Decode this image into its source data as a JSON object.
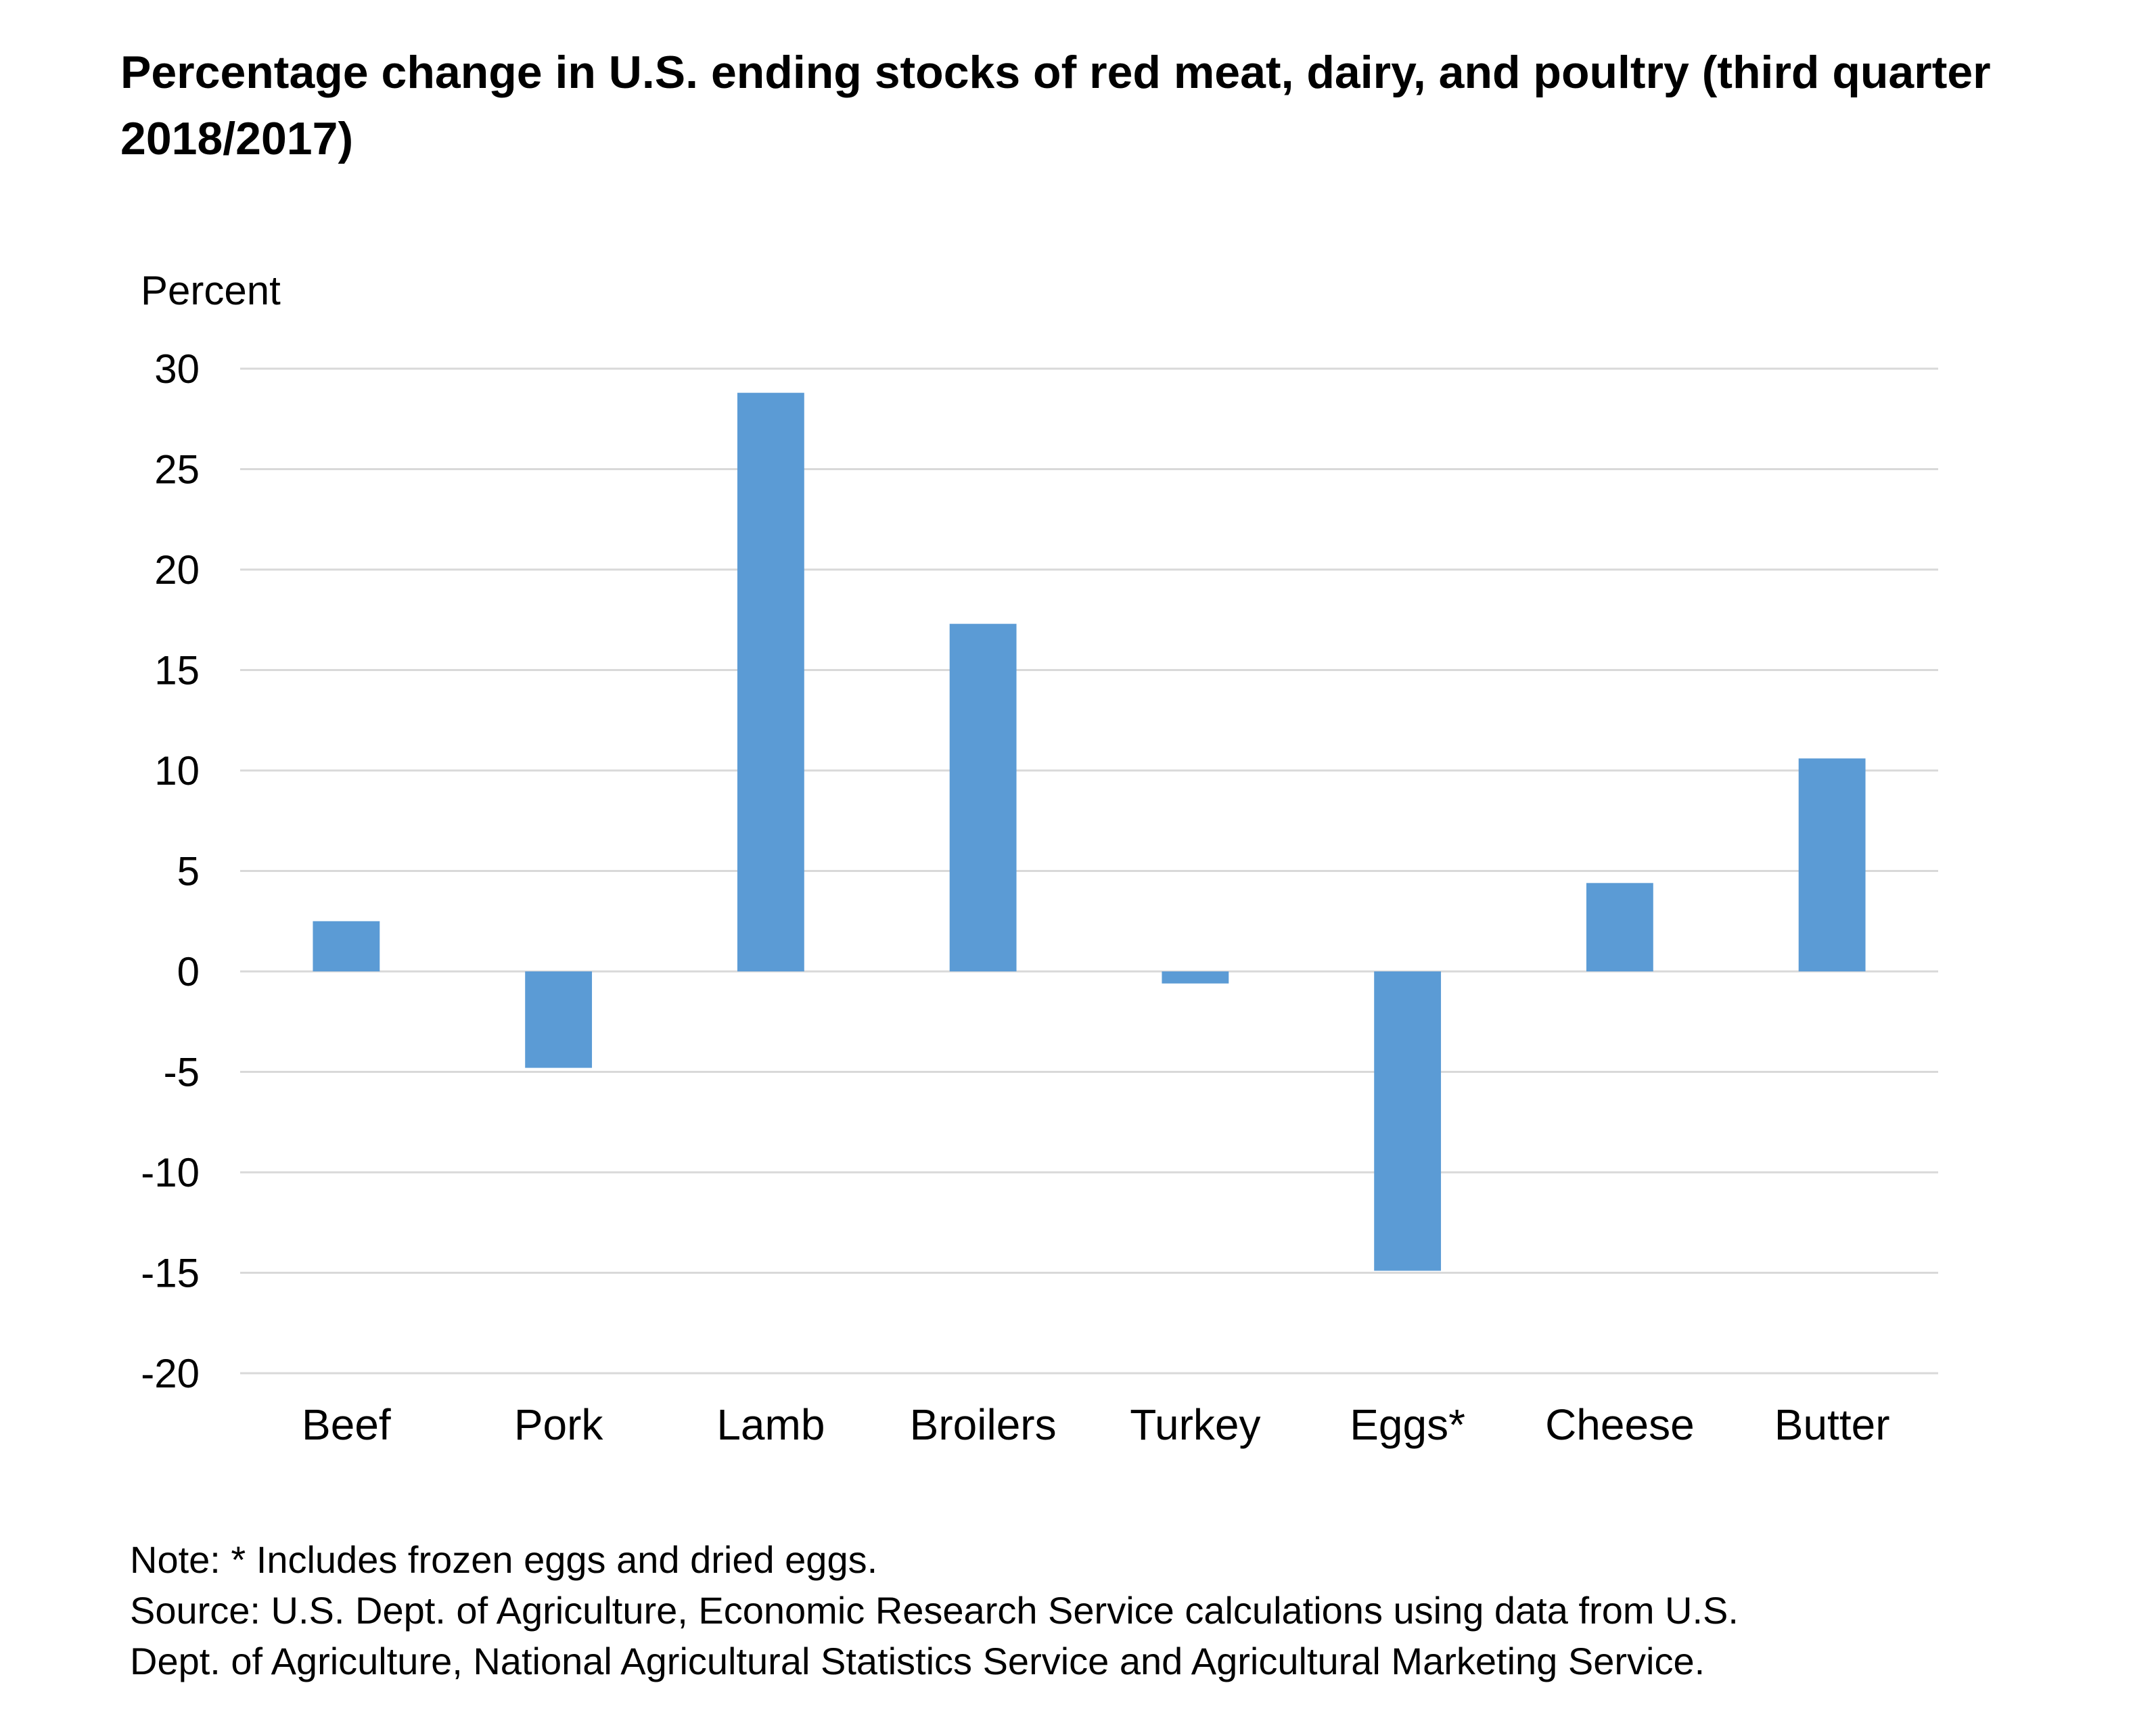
{
  "chart_data": {
    "type": "bar",
    "title": "Percentage change in U.S. ending stocks of red meat, dairy, and poultry (third quarter 2018/2017)",
    "ylabel": "Percent",
    "xlabel": "",
    "categories": [
      "Beef",
      "Pork",
      "Lamb",
      "Broilers",
      "Turkey",
      "Eggs*",
      "Cheese",
      "Butter"
    ],
    "values": [
      2.5,
      -4.8,
      28.8,
      17.3,
      -0.6,
      -14.9,
      4.4,
      10.6
    ],
    "ylim": [
      -20,
      30
    ],
    "yticks": [
      30,
      25,
      20,
      15,
      10,
      5,
      0,
      -5,
      -10,
      -15,
      -20
    ],
    "grid": true,
    "legend": "none",
    "bar_color": "#5b9bd5",
    "grid_color": "#d9d9d9"
  },
  "notes": {
    "note": "Note: * Includes frozen eggs and dried eggs.",
    "source_line1": "Source: U.S. Dept. of Agriculture, Economic Research Service calculations using data from U.S.",
    "source_line2": "Dept. of Agriculture, National Agricultural Statistics Service and Agricultural Marketing Service."
  }
}
